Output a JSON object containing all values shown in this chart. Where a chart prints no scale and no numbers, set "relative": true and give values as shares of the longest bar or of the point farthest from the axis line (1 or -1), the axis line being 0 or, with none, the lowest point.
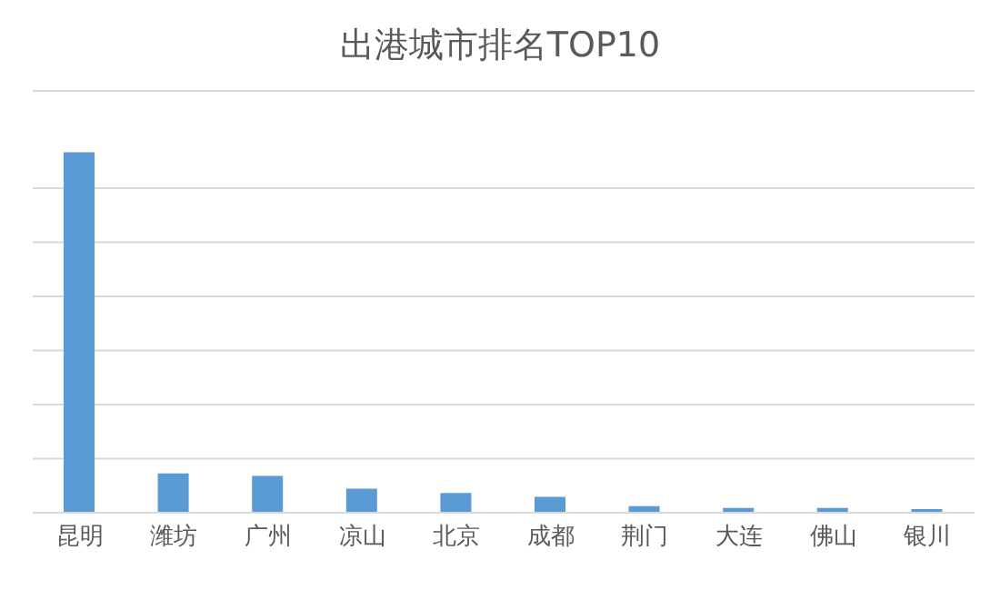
{
  "chart_data": {
    "type": "bar",
    "title": "出港城市排名TOP10",
    "categories": [
      "昆明",
      "潍坊",
      "广州",
      "凉山",
      "北京",
      "成都",
      "荆门",
      "大连",
      "佛山",
      "银川"
    ],
    "values": [
      1,
      0.109,
      0.102,
      0.067,
      0.055,
      0.044,
      0.018,
      0.013,
      0.013,
      0.01
    ],
    "color": "#5b9bd5",
    "relative": true,
    "grid": "y"
  }
}
